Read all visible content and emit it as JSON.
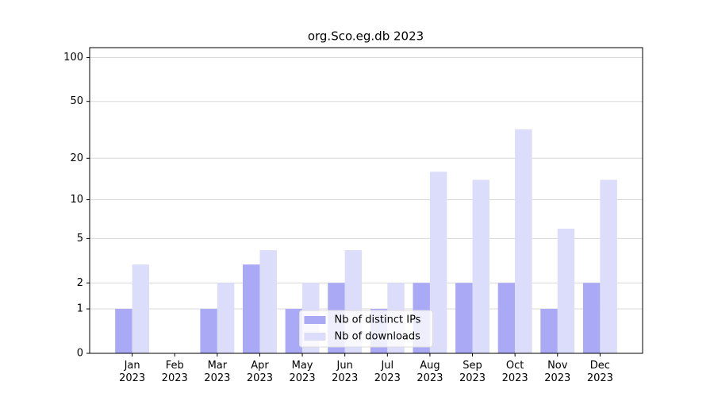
{
  "chart_data": {
    "type": "bar",
    "title": "org.Sco.eg.db 2023",
    "categories": [
      "Jan\n2023",
      "Feb\n2023",
      "Mar\n2023",
      "Apr\n2023",
      "May\n2023",
      "Jun\n2023",
      "Jul\n2023",
      "Aug\n2023",
      "Sep\n2023",
      "Oct\n2023",
      "Nov\n2023",
      "Dec\n2023"
    ],
    "series": [
      {
        "name": "Nb of distinct IPs",
        "color": "#a9a9f6",
        "values": [
          1,
          0,
          1,
          3,
          1,
          2,
          1,
          2,
          2,
          2,
          1,
          2
        ]
      },
      {
        "name": "Nb of downloads",
        "color": "#dcdcfb",
        "values": [
          3,
          0,
          2,
          4,
          2,
          4,
          2,
          16,
          14,
          32,
          6,
          14
        ]
      }
    ],
    "yscale": "log1p",
    "ylim": [
      0,
      117
    ],
    "yticks": [
      0,
      1,
      2,
      5,
      10,
      20,
      50,
      100
    ],
    "grid": true,
    "legend": "lower center"
  }
}
